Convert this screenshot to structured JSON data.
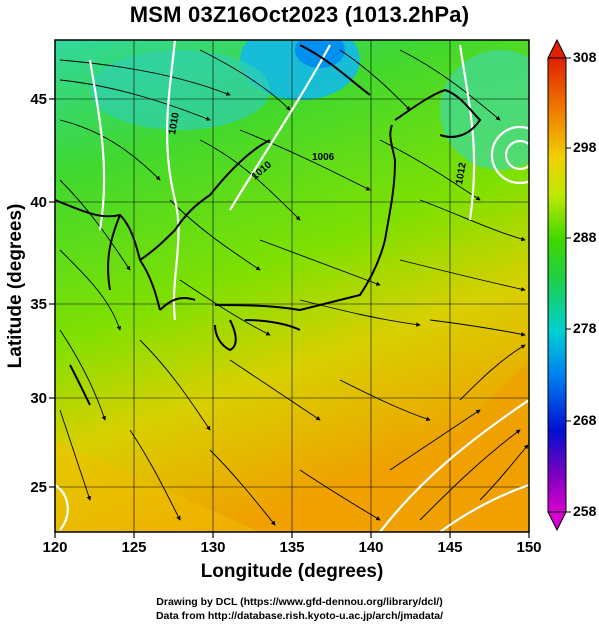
{
  "title": "MSM 03Z16Oct2023 (1013.2hPa)",
  "map": {
    "xlabel": "Longitude (degrees)",
    "ylabel": "Latitude  (degrees)",
    "lon_range": [
      120,
      150
    ],
    "lat_range": [
      22.6,
      47.8
    ],
    "lon_ticks": [
      "120",
      "125",
      "130",
      "135",
      "140",
      "145",
      "150"
    ],
    "lat_ticks": [
      "25",
      "30",
      "35",
      "40",
      "45"
    ],
    "variable": "temperature (K) shading with surface-wind streamlines and isobars",
    "isobar_labels": [
      "1010",
      "1010",
      "1006",
      "1012"
    ]
  },
  "colorbar": {
    "ticks": [
      "308",
      "298",
      "288",
      "278",
      "268",
      "258"
    ],
    "min": 258,
    "max": 308
  },
  "credits": {
    "line1": "Drawing by DCL (https://www.gfd-dennou.org/library/dcl/)",
    "line2": "Data from http://database.rish.kyoto-u.ac.jp/arch/jmadata/"
  },
  "colors": {
    "cold_sea": "#00c8e6",
    "mid": "#30d020",
    "warm": "#f0a000",
    "contour": "#ffffff",
    "coast": "#000000"
  }
}
